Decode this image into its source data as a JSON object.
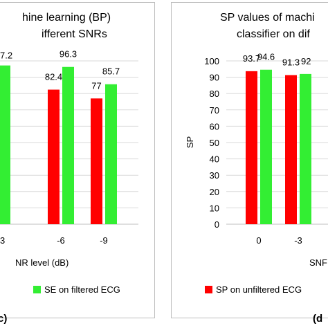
{
  "colors": {
    "unfiltered": "#ff0000",
    "filtered": "#33ee33",
    "grid": "#d9d9d9"
  },
  "panel_c": {
    "title_line1": "hine learning (BP)",
    "title_line2": "ifferent SNRs",
    "xlabel": "NR level (dB)",
    "legend_label": "SE on filtered ECG",
    "tag": "c)",
    "clipped_value_label": "7.2",
    "clipped_tick_label": "3"
  },
  "panel_d": {
    "title_line1": "SP values of machi",
    "title_line2": "classifier on dif",
    "ylabel": "SP",
    "xlabel": "SNF",
    "legend_label": "SP on unfiltered ECG",
    "tag": "(d",
    "clipped_value_label": "92"
  },
  "chart_data": [
    {
      "type": "bar",
      "title": "hine learning (BP) ifferent SNRs",
      "xlabel": "NR level (dB)",
      "categories": [
        "-6",
        "-9"
      ],
      "series": [
        {
          "values": [
            82.4,
            77
          ]
        },
        {
          "name": "SE on filtered ECG",
          "values": [
            96.3,
            85.7
          ]
        }
      ],
      "ylim": [
        0,
        100
      ],
      "grid": true
    },
    {
      "type": "bar",
      "title": "SP values of machi classifier on dif",
      "xlabel": "SNF",
      "ylabel": "SP",
      "categories": [
        "0",
        "-3"
      ],
      "series": [
        {
          "name": "SP on unfiltered ECG",
          "values": [
            93.7,
            91.3
          ]
        },
        {
          "values": [
            94.6,
            92
          ]
        }
      ],
      "ylim": [
        0,
        100
      ],
      "yticks": [
        0,
        10,
        20,
        30,
        40,
        50,
        60,
        70,
        80,
        90,
        100
      ],
      "legend": "bottom",
      "grid": true
    }
  ]
}
